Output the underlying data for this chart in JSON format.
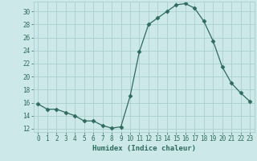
{
  "x": [
    0,
    1,
    2,
    3,
    4,
    5,
    6,
    7,
    8,
    9,
    10,
    11,
    12,
    13,
    14,
    15,
    16,
    17,
    18,
    19,
    20,
    21,
    22,
    23
  ],
  "y": [
    15.8,
    15.0,
    15.0,
    14.5,
    14.0,
    13.2,
    13.2,
    12.5,
    12.1,
    12.3,
    17.0,
    23.8,
    28.0,
    29.0,
    30.0,
    31.0,
    31.2,
    30.5,
    28.5,
    25.5,
    21.5,
    19.0,
    17.5,
    16.2
  ],
  "line_color": "#2e6b5e",
  "marker": "D",
  "markersize": 2.5,
  "bg_color": "#cce8e8",
  "grid_color": "#aacece",
  "xlabel": "Humidex (Indice chaleur)",
  "ylim": [
    11.5,
    31.5
  ],
  "xlim": [
    -0.5,
    23.5
  ],
  "yticks": [
    12,
    14,
    16,
    18,
    20,
    22,
    24,
    26,
    28,
    30
  ],
  "xticks": [
    0,
    1,
    2,
    3,
    4,
    5,
    6,
    7,
    8,
    9,
    10,
    11,
    12,
    13,
    14,
    15,
    16,
    17,
    18,
    19,
    20,
    21,
    22,
    23
  ],
  "label_fontsize": 6.5,
  "tick_fontsize": 5.5
}
